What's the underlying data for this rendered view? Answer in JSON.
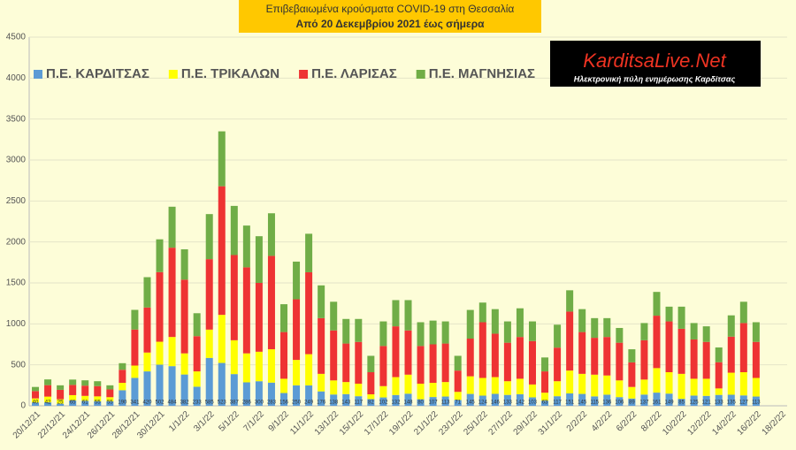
{
  "chart_data": {
    "type": "stacked_bar",
    "title": "Επιβεβαιωμένα κρούσματα COVID-19 στη Θεσσαλία",
    "subtitle": "Από 20 Δεκεμβρίου 2021 έως σήμερα",
    "annotations": [
      "KarditsaLive.Net",
      "Ηλεκτρονική πύλη ενημέρωσης Καρδίτσας"
    ],
    "categories": [
      "20/12/21",
      null,
      "22/12/21",
      null,
      "24/12/21",
      null,
      "26/12/21",
      null,
      "28/12/21",
      null,
      "30/12/21",
      null,
      "1/1/22",
      null,
      "3/1/22",
      null,
      "5/1/22",
      null,
      "7/1/22",
      null,
      "9/1/22",
      null,
      "11/1/22",
      null,
      "13/1/22",
      null,
      "15/1/22",
      null,
      "17/1/22",
      null,
      "19/1/22",
      null,
      "21/1/22",
      null,
      "23/1/22",
      null,
      "25/1/22",
      null,
      "27/1/22",
      null,
      "29/1/22",
      null,
      "31/1/22",
      null,
      "2/2/22",
      null,
      "4/2/22",
      null,
      "6/2/22",
      null,
      "8/2/22",
      null,
      "10/2/22",
      null,
      "12/2/22",
      null,
      "14/2/22",
      null,
      "16/2/22",
      null,
      "18/2/22"
    ],
    "series": [
      {
        "name": "Π.Ε. ΚΑΡΔΙΤΣΑΣ",
        "color": "#5b9bd5",
        "values": [
          40,
          42,
          25,
          65,
          61,
          55,
          55,
          190,
          341,
          420,
          502,
          484,
          382,
          233,
          585,
          523,
          387,
          286,
          300,
          283,
          156,
          250,
          249,
          176,
          138,
          143,
          117,
          82,
          102,
          132,
          148,
          80,
          107,
          113,
          71,
          145,
          124,
          146,
          133,
          142,
          103,
          63,
          117,
          151,
          145,
          115,
          136,
          106,
          89,
          137,
          161,
          149,
          85,
          125,
          121,
          133,
          135,
          127,
          113,
          null,
          null
        ]
      },
      {
        "name": "Π.Ε. ΤΡΙΚΑΛΩΝ",
        "color": "#ffff00",
        "values": [
          50,
          70,
          55,
          65,
          60,
          60,
          50,
          90,
          150,
          230,
          280,
          356,
          258,
          187,
          345,
          587,
          413,
          354,
          360,
          407,
          174,
          310,
          381,
          214,
          172,
          147,
          153,
          58,
          138,
          218,
          232,
          190,
          173,
          177,
          99,
          215,
          216,
          204,
          167,
          188,
          157,
          97,
          183,
          279,
          245,
          265,
          234,
          204,
          141,
          183,
          299,
          261,
          305,
          205,
          209,
          79,
          269,
          283,
          227,
          null,
          null
        ]
      },
      {
        "name": "Π.Ε. ΛΑΡΙΣΑΣ",
        "color": "#ee3333",
        "values": [
          90,
          140,
          115,
          125,
          125,
          125,
          95,
          160,
          440,
          550,
          850,
          1090,
          900,
          430,
          860,
          1570,
          1040,
          1050,
          840,
          1140,
          570,
          740,
          1000,
          680,
          610,
          470,
          510,
          270,
          490,
          620,
          540,
          460,
          470,
          470,
          260,
          460,
          680,
          530,
          470,
          510,
          530,
          260,
          410,
          720,
          510,
          450,
          470,
          460,
          300,
          480,
          640,
          620,
          550,
          480,
          450,
          320,
          440,
          600,
          440,
          null,
          null
        ]
      },
      {
        "name": "Π.Ε. ΜΑΓΝΗΣΙΑΣ",
        "color": "#70ad47",
        "values": [
          50,
          70,
          55,
          65,
          65,
          60,
          50,
          80,
          240,
          370,
          400,
          500,
          370,
          280,
          550,
          670,
          600,
          510,
          570,
          520,
          340,
          460,
          470,
          400,
          350,
          300,
          280,
          200,
          300,
          320,
          370,
          290,
          290,
          270,
          180,
          350,
          240,
          300,
          260,
          350,
          240,
          170,
          280,
          260,
          280,
          240,
          230,
          180,
          160,
          210,
          290,
          180,
          270,
          200,
          190,
          180,
          260,
          260,
          240,
          null,
          null
        ]
      }
    ],
    "ylim": [
      0,
      4500
    ],
    "yticks": [
      0,
      500,
      1000,
      1500,
      2000,
      2500,
      3000,
      3500,
      4000,
      4500
    ],
    "grid": true,
    "legend": "top-left",
    "data_labels_series": 0
  }
}
